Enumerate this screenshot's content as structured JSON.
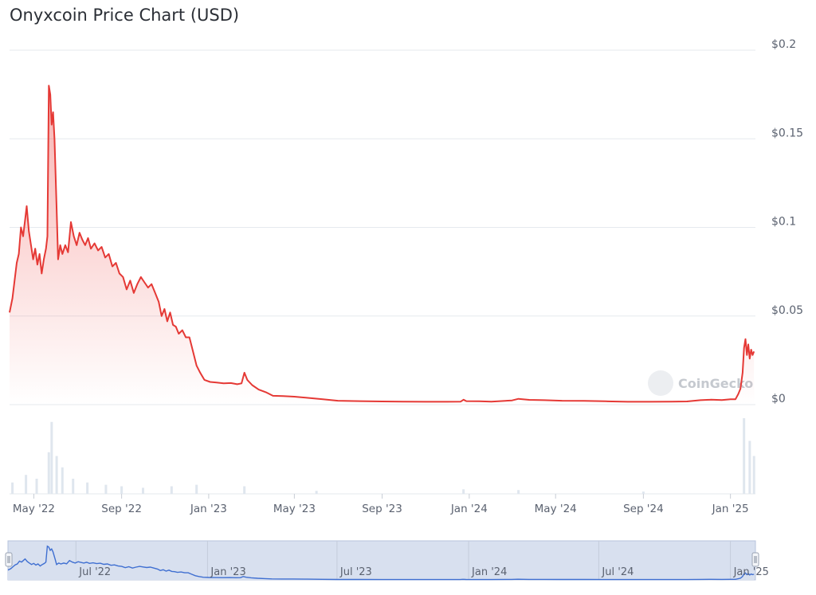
{
  "chart_data": {
    "type": "area",
    "title": "Onyxcoin Price Chart (USD)",
    "currency": "USD",
    "ylim": [
      0,
      0.2
    ],
    "y_ticks": [
      "$0.2",
      "$0.15",
      "$0.1",
      "$0.05",
      "$0"
    ],
    "y_tick_values": [
      0.2,
      0.15,
      0.1,
      0.05,
      0
    ],
    "x_ticks": [
      "May '22",
      "Sep '22",
      "Jan '23",
      "May '23",
      "Sep '23",
      "Jan '24",
      "May '24",
      "Sep '24",
      "Jan '25"
    ],
    "x_tick_dates": [
      "2022-05-01",
      "2022-09-01",
      "2023-01-01",
      "2023-05-01",
      "2023-09-01",
      "2024-01-01",
      "2024-05-01",
      "2024-09-01",
      "2025-01-01"
    ],
    "series": [
      {
        "color": "#e53935",
        "points": [
          [
            "2022-03-28",
            0.052
          ],
          [
            "2022-04-01",
            0.06
          ],
          [
            "2022-04-04",
            0.07
          ],
          [
            "2022-04-07",
            0.08
          ],
          [
            "2022-04-10",
            0.085
          ],
          [
            "2022-04-13",
            0.1
          ],
          [
            "2022-04-16",
            0.095
          ],
          [
            "2022-04-19",
            0.105
          ],
          [
            "2022-04-21",
            0.112
          ],
          [
            "2022-04-24",
            0.098
          ],
          [
            "2022-04-27",
            0.09
          ],
          [
            "2022-04-30",
            0.082
          ],
          [
            "2022-05-03",
            0.088
          ],
          [
            "2022-05-06",
            0.079
          ],
          [
            "2022-05-09",
            0.085
          ],
          [
            "2022-05-12",
            0.074
          ],
          [
            "2022-05-15",
            0.082
          ],
          [
            "2022-05-18",
            0.088
          ],
          [
            "2022-05-20",
            0.095
          ],
          [
            "2022-05-22",
            0.18
          ],
          [
            "2022-05-24",
            0.175
          ],
          [
            "2022-05-26",
            0.158
          ],
          [
            "2022-05-28",
            0.165
          ],
          [
            "2022-05-30",
            0.15
          ],
          [
            "2022-06-02",
            0.11
          ],
          [
            "2022-06-04",
            0.082
          ],
          [
            "2022-06-07",
            0.09
          ],
          [
            "2022-06-10",
            0.085
          ],
          [
            "2022-06-14",
            0.09
          ],
          [
            "2022-06-18",
            0.086
          ],
          [
            "2022-06-22",
            0.103
          ],
          [
            "2022-06-26",
            0.095
          ],
          [
            "2022-06-30",
            0.09
          ],
          [
            "2022-07-04",
            0.097
          ],
          [
            "2022-07-08",
            0.093
          ],
          [
            "2022-07-12",
            0.09
          ],
          [
            "2022-07-16",
            0.094
          ],
          [
            "2022-07-20",
            0.088
          ],
          [
            "2022-07-25",
            0.091
          ],
          [
            "2022-07-30",
            0.087
          ],
          [
            "2022-08-04",
            0.089
          ],
          [
            "2022-08-09",
            0.083
          ],
          [
            "2022-08-14",
            0.085
          ],
          [
            "2022-08-19",
            0.078
          ],
          [
            "2022-08-24",
            0.08
          ],
          [
            "2022-08-29",
            0.074
          ],
          [
            "2022-09-03",
            0.072
          ],
          [
            "2022-09-08",
            0.065
          ],
          [
            "2022-09-13",
            0.07
          ],
          [
            "2022-09-18",
            0.063
          ],
          [
            "2022-09-23",
            0.068
          ],
          [
            "2022-09-28",
            0.072
          ],
          [
            "2022-10-03",
            0.069
          ],
          [
            "2022-10-08",
            0.066
          ],
          [
            "2022-10-13",
            0.068
          ],
          [
            "2022-10-18",
            0.063
          ],
          [
            "2022-10-23",
            0.058
          ],
          [
            "2022-10-27",
            0.05
          ],
          [
            "2022-10-31",
            0.054
          ],
          [
            "2022-11-04",
            0.047
          ],
          [
            "2022-11-08",
            0.052
          ],
          [
            "2022-11-12",
            0.045
          ],
          [
            "2022-11-16",
            0.044
          ],
          [
            "2022-11-20",
            0.04
          ],
          [
            "2022-11-25",
            0.042
          ],
          [
            "2022-11-30",
            0.038
          ],
          [
            "2022-12-05",
            0.038
          ],
          [
            "2022-12-10",
            0.03
          ],
          [
            "2022-12-15",
            0.022
          ],
          [
            "2022-12-20",
            0.018
          ],
          [
            "2022-12-26",
            0.014
          ],
          [
            "2023-01-03",
            0.0128
          ],
          [
            "2023-01-12",
            0.0125
          ],
          [
            "2023-01-22",
            0.012
          ],
          [
            "2023-02-01",
            0.0122
          ],
          [
            "2023-02-10",
            0.0115
          ],
          [
            "2023-02-16",
            0.012
          ],
          [
            "2023-02-20",
            0.018
          ],
          [
            "2023-02-24",
            0.014
          ],
          [
            "2023-03-03",
            0.011
          ],
          [
            "2023-03-12",
            0.0085
          ],
          [
            "2023-03-22",
            0.007
          ],
          [
            "2023-04-01",
            0.005
          ],
          [
            "2023-04-15",
            0.0048
          ],
          [
            "2023-05-01",
            0.0045
          ],
          [
            "2023-05-20",
            0.0038
          ],
          [
            "2023-06-10",
            0.003
          ],
          [
            "2023-07-01",
            0.0022
          ],
          [
            "2023-08-01",
            0.002
          ],
          [
            "2023-09-01",
            0.0018
          ],
          [
            "2023-10-01",
            0.0017
          ],
          [
            "2023-11-01",
            0.0016
          ],
          [
            "2023-12-01",
            0.0016
          ],
          [
            "2023-12-20",
            0.0017
          ],
          [
            "2023-12-24",
            0.0028
          ],
          [
            "2023-12-28",
            0.002
          ],
          [
            "2024-01-15",
            0.0019
          ],
          [
            "2024-02-01",
            0.0017
          ],
          [
            "2024-03-01",
            0.0024
          ],
          [
            "2024-03-10",
            0.0033
          ],
          [
            "2024-03-25",
            0.0027
          ],
          [
            "2024-04-15",
            0.0025
          ],
          [
            "2024-05-10",
            0.0022
          ],
          [
            "2024-06-10",
            0.0021
          ],
          [
            "2024-07-10",
            0.0019
          ],
          [
            "2024-08-10",
            0.0016
          ],
          [
            "2024-09-10",
            0.0016
          ],
          [
            "2024-10-10",
            0.0017
          ],
          [
            "2024-11-01",
            0.0018
          ],
          [
            "2024-11-20",
            0.0025
          ],
          [
            "2024-12-05",
            0.0028
          ],
          [
            "2024-12-20",
            0.0026
          ],
          [
            "2025-01-01",
            0.003
          ],
          [
            "2025-01-08",
            0.003
          ],
          [
            "2025-01-12",
            0.006
          ],
          [
            "2025-01-15",
            0.009
          ],
          [
            "2025-01-18",
            0.018
          ],
          [
            "2025-01-20",
            0.032
          ],
          [
            "2025-01-22",
            0.037
          ],
          [
            "2025-01-24",
            0.028
          ],
          [
            "2025-01-26",
            0.034
          ],
          [
            "2025-01-28",
            0.026
          ],
          [
            "2025-01-30",
            0.031
          ],
          [
            "2025-02-01",
            0.028
          ],
          [
            "2025-02-03",
            0.03
          ]
        ]
      }
    ],
    "volume": {
      "color": "#dfe6ee",
      "points": [
        [
          "2022-04-01",
          0.15
        ],
        [
          "2022-04-20",
          0.25
        ],
        [
          "2022-05-05",
          0.2
        ],
        [
          "2022-05-22",
          0.55
        ],
        [
          "2022-05-26",
          0.95
        ],
        [
          "2022-06-02",
          0.5
        ],
        [
          "2022-06-10",
          0.35
        ],
        [
          "2022-06-25",
          0.2
        ],
        [
          "2022-07-15",
          0.15
        ],
        [
          "2022-08-10",
          0.12
        ],
        [
          "2022-09-01",
          0.1
        ],
        [
          "2022-10-01",
          0.08
        ],
        [
          "2022-11-10",
          0.1
        ],
        [
          "2022-12-15",
          0.12
        ],
        [
          "2023-02-20",
          0.1
        ],
        [
          "2023-06-01",
          0.04
        ],
        [
          "2023-12-24",
          0.06
        ],
        [
          "2024-03-10",
          0.05
        ],
        [
          "2024-09-01",
          0.03
        ],
        [
          "2025-01-20",
          1.0
        ],
        [
          "2025-01-28",
          0.7
        ],
        [
          "2025-02-03",
          0.5
        ]
      ]
    },
    "watermark": "CoinGecko",
    "navigator": {
      "x_ticks": [
        "Jul '22",
        "Jan '23",
        "Jul '23",
        "Jan '24",
        "Jul '24",
        "Jan '25"
      ],
      "x_tick_dates": [
        "2022-07-01",
        "2023-01-01",
        "2023-07-01",
        "2024-01-01",
        "2024-07-01",
        "2025-01-01"
      ],
      "line_color": "#3f6fd1",
      "fill_color": "#d8e0ef"
    }
  }
}
